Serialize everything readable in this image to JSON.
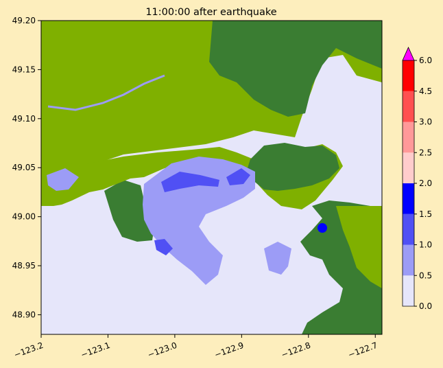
{
  "chart_data": {
    "type": "heatmap",
    "title": "11:00:00 after earthquake",
    "xlabel": "",
    "ylabel": "",
    "xlim": [
      -123.2,
      -122.69
    ],
    "ylim": [
      48.88,
      49.2
    ],
    "xticks": [
      -123.2,
      -123.1,
      -123.0,
      -122.9,
      -122.8,
      -122.7
    ],
    "xtick_labels": [
      "−123.2",
      "−123.1",
      "−123.0",
      "−122.9",
      "−122.8",
      "−122.7"
    ],
    "yticks": [
      48.9,
      48.95,
      49.0,
      49.05,
      49.1,
      49.15,
      49.2
    ],
    "ytick_labels": [
      "48.90",
      "48.95",
      "49.00",
      "49.05",
      "49.10",
      "49.15",
      "49.20"
    ],
    "colorbar": {
      "extend": "max",
      "levels": [
        0.0,
        0.5,
        1.0,
        1.5,
        2.0,
        2.5,
        3.0,
        4.5,
        6.0
      ],
      "labels": [
        "0.0",
        "0.5",
        "1.0",
        "1.5",
        "2.0",
        "2.5",
        "3.0",
        "4.5",
        "6.0"
      ],
      "colors": [
        "#e6e6fa",
        "#9c9cf6",
        "#5050f4",
        "#0000ff",
        "#ffcccc",
        "#ff9999",
        "#ff5050",
        "#ff0000"
      ],
      "extend_color": "#ff00ff"
    },
    "colors": {
      "water": "#e6e6fa",
      "lowland": "#7fb000",
      "highland": "#3a7d32"
    },
    "grid": false
  }
}
